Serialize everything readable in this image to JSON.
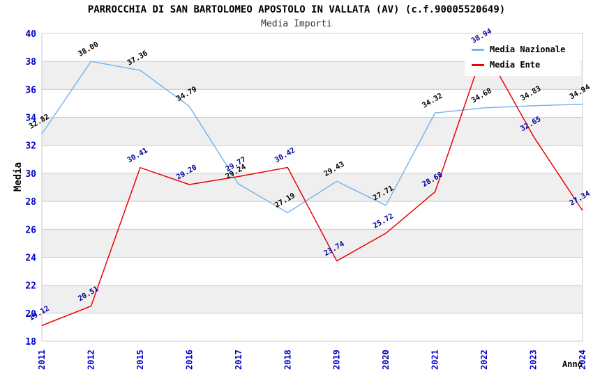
{
  "chart_data": {
    "type": "line",
    "title": "PARROCCHIA DI SAN BARTOLOMEO APOSTOLO IN VALLATA (AV) (c.f.90005520649)",
    "subtitle": "Media Importi",
    "xlabel": "Anno",
    "ylabel": "Media",
    "ylim": [
      18,
      40
    ],
    "ytick_step": 2,
    "grid": true,
    "legend_position": "top-right",
    "categories": [
      "2011",
      "2012",
      "2015",
      "2016",
      "2017",
      "2018",
      "2019",
      "2020",
      "2021",
      "2022",
      "2023",
      "2024"
    ],
    "series": [
      {
        "name": "Media Nazionale",
        "color": "#7cb5ec",
        "label_color": "#000000",
        "values": [
          32.82,
          38.0,
          37.36,
          34.79,
          29.24,
          27.19,
          29.43,
          27.71,
          34.32,
          34.68,
          34.83,
          34.94
        ]
      },
      {
        "name": "Media Ente",
        "color": "#ee0000",
        "label_color": "#000099",
        "values": [
          19.12,
          20.51,
          30.41,
          29.2,
          29.77,
          30.42,
          23.74,
          25.72,
          28.68,
          38.94,
          32.65,
          27.34
        ]
      }
    ],
    "styles": {
      "tick_label_color": "#0000cc",
      "band_fill": "#efefef",
      "grid_color": "#cccccc"
    }
  }
}
